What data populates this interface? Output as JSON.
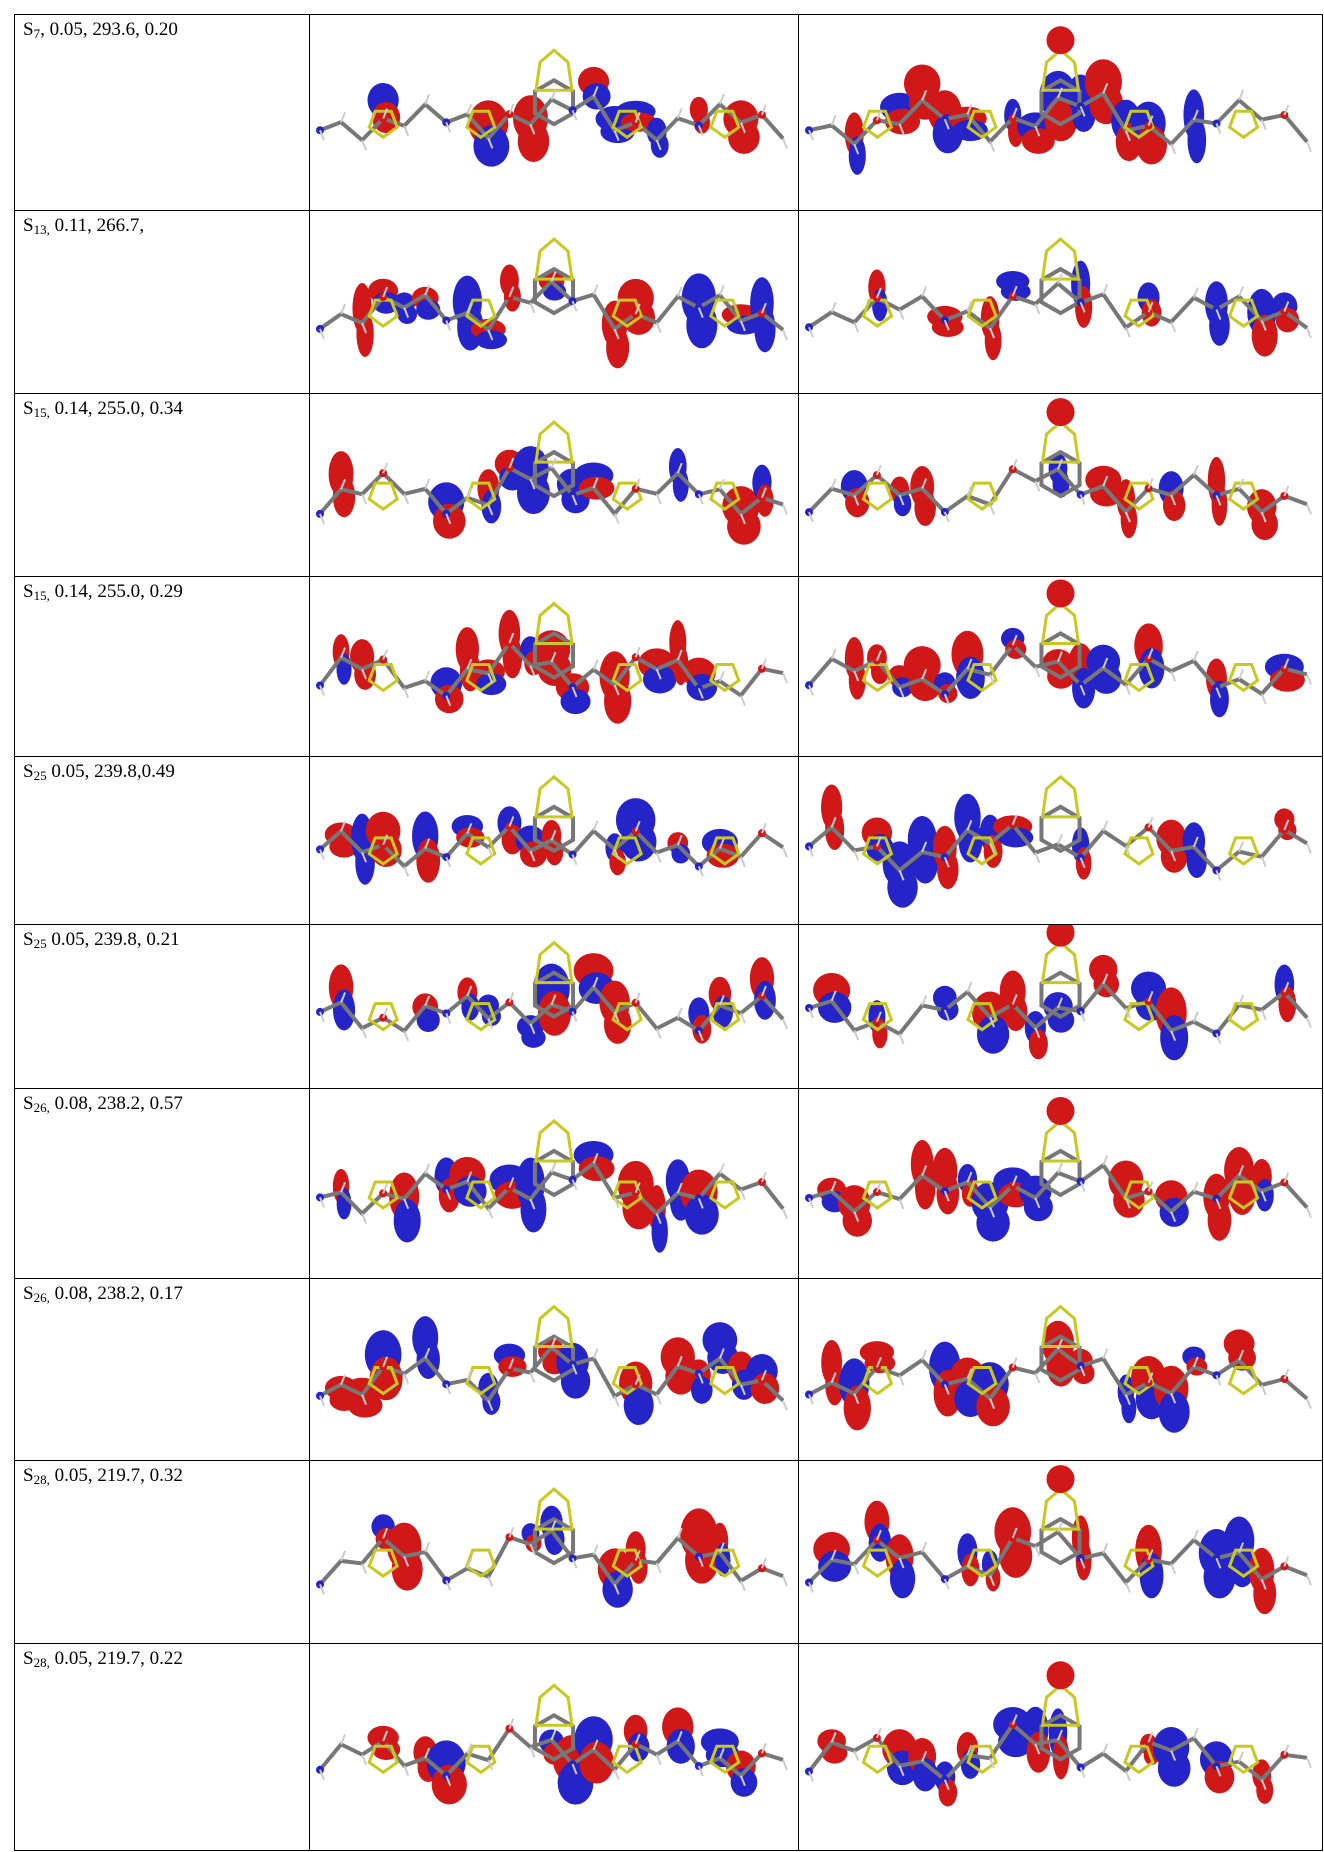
{
  "table": {
    "rows": [
      {
        "state": "S",
        "sub": "7",
        "rest": ", 0.05, 293.6, 0.20"
      },
      {
        "state": "S",
        "sub": "13,",
        "rest": " 0.11, 266.7,"
      },
      {
        "state": "S",
        "sub": "15,",
        "rest": " 0.14, 255.0, 0.34"
      },
      {
        "state": "S",
        "sub": "15,",
        "rest": " 0.14, 255.0, 0.29"
      },
      {
        "state": "S",
        "sub": "25",
        "rest": " 0.05, 239.8,0.49"
      },
      {
        "state": "S",
        "sub": "25",
        "rest": " 0.05, 239.8, 0.21"
      },
      {
        "state": "S",
        "sub": "26,",
        "rest": " 0.08, 238.2, 0.57"
      },
      {
        "state": "S",
        "sub": "26,",
        "rest": " 0.08, 238.2, 0.17"
      },
      {
        "state": "S",
        "sub": "28,",
        "rest": " 0.05, 219.7, 0.32"
      },
      {
        "state": "S",
        "sub": "28,",
        "rest": " 0.05, 219.7, 0.22"
      }
    ]
  }
}
